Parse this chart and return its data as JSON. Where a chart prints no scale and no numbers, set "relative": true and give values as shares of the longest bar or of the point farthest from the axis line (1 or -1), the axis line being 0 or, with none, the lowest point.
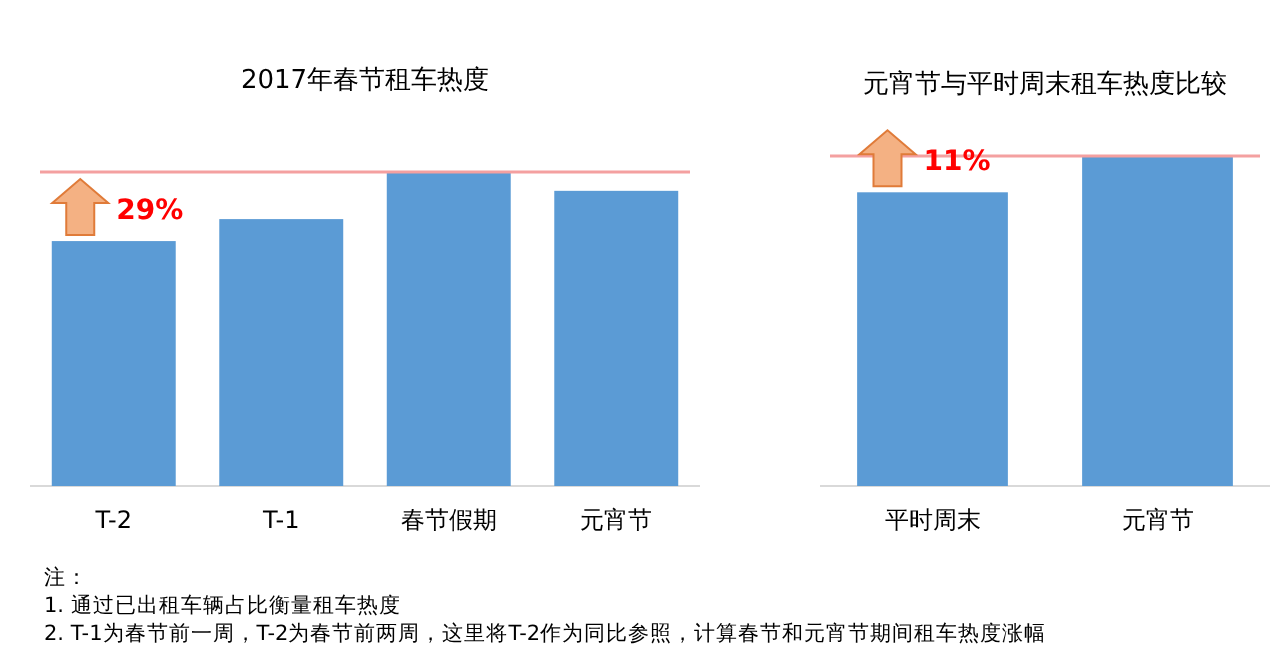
{
  "chart_data": [
    {
      "type": "bar",
      "title": "2017年春节租车热度",
      "relative": true,
      "categories": [
        "T-2",
        "T-1",
        "春节假期",
        "元宵节"
      ],
      "series": [
        {
          "color": "#5b9bd5",
          "values": [
            0.78,
            0.85,
            1,
            0.94
          ]
        }
      ],
      "ref_lines": [
        {
          "axis": "y",
          "value": 1,
          "color": "#f4a0a0"
        }
      ],
      "annotations": [
        {
          "text": "29%",
          "x": "T-2",
          "y": 0.78
        },
        "注：",
        "1. 通过已出租车辆占比衡量租车热度",
        "2. T-1为春节前一周，T-2为春节前两周，这里将T-2作为同比参照，计算春节和元宵节期间租车热度涨幅"
      ]
    },
    {
      "type": "bar",
      "title": "元宵节与平时周末租车热度比较",
      "relative": true,
      "categories": [
        "平时周末",
        "元宵节"
      ],
      "series": [
        {
          "color": "#5b9bd5",
          "values": [
            0.89,
            1
          ]
        }
      ],
      "ref_lines": [
        {
          "axis": "y",
          "value": 1,
          "color": "#f4a0a0"
        }
      ],
      "annotations": [
        {
          "text": "11%",
          "x": "平时周末",
          "y": 0.89
        }
      ]
    }
  ]
}
